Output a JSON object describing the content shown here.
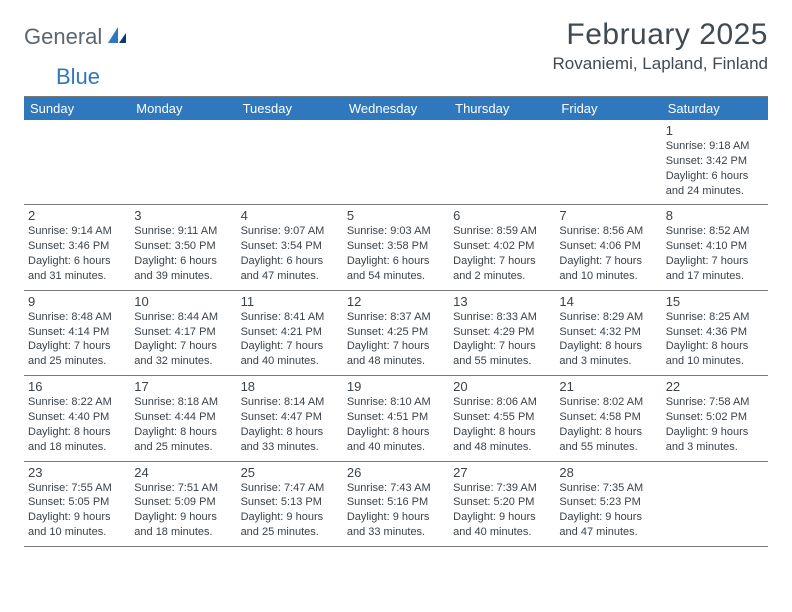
{
  "logo": {
    "general": "General",
    "blue": "Blue"
  },
  "title": "February 2025",
  "location": "Rovaniemi, Lapland, Finland",
  "colors": {
    "header_bg": "#2f78bd",
    "text": "#3a4249",
    "rule": "#7a7a7a"
  },
  "day_names": [
    "Sunday",
    "Monday",
    "Tuesday",
    "Wednesday",
    "Thursday",
    "Friday",
    "Saturday"
  ],
  "weeks": [
    [
      null,
      null,
      null,
      null,
      null,
      null,
      {
        "n": "1",
        "sr": "Sunrise: 9:18 AM",
        "ss": "Sunset: 3:42 PM",
        "d1": "Daylight: 6 hours",
        "d2": "and 24 minutes."
      }
    ],
    [
      {
        "n": "2",
        "sr": "Sunrise: 9:14 AM",
        "ss": "Sunset: 3:46 PM",
        "d1": "Daylight: 6 hours",
        "d2": "and 31 minutes."
      },
      {
        "n": "3",
        "sr": "Sunrise: 9:11 AM",
        "ss": "Sunset: 3:50 PM",
        "d1": "Daylight: 6 hours",
        "d2": "and 39 minutes."
      },
      {
        "n": "4",
        "sr": "Sunrise: 9:07 AM",
        "ss": "Sunset: 3:54 PM",
        "d1": "Daylight: 6 hours",
        "d2": "and 47 minutes."
      },
      {
        "n": "5",
        "sr": "Sunrise: 9:03 AM",
        "ss": "Sunset: 3:58 PM",
        "d1": "Daylight: 6 hours",
        "d2": "and 54 minutes."
      },
      {
        "n": "6",
        "sr": "Sunrise: 8:59 AM",
        "ss": "Sunset: 4:02 PM",
        "d1": "Daylight: 7 hours",
        "d2": "and 2 minutes."
      },
      {
        "n": "7",
        "sr": "Sunrise: 8:56 AM",
        "ss": "Sunset: 4:06 PM",
        "d1": "Daylight: 7 hours",
        "d2": "and 10 minutes."
      },
      {
        "n": "8",
        "sr": "Sunrise: 8:52 AM",
        "ss": "Sunset: 4:10 PM",
        "d1": "Daylight: 7 hours",
        "d2": "and 17 minutes."
      }
    ],
    [
      {
        "n": "9",
        "sr": "Sunrise: 8:48 AM",
        "ss": "Sunset: 4:14 PM",
        "d1": "Daylight: 7 hours",
        "d2": "and 25 minutes."
      },
      {
        "n": "10",
        "sr": "Sunrise: 8:44 AM",
        "ss": "Sunset: 4:17 PM",
        "d1": "Daylight: 7 hours",
        "d2": "and 32 minutes."
      },
      {
        "n": "11",
        "sr": "Sunrise: 8:41 AM",
        "ss": "Sunset: 4:21 PM",
        "d1": "Daylight: 7 hours",
        "d2": "and 40 minutes."
      },
      {
        "n": "12",
        "sr": "Sunrise: 8:37 AM",
        "ss": "Sunset: 4:25 PM",
        "d1": "Daylight: 7 hours",
        "d2": "and 48 minutes."
      },
      {
        "n": "13",
        "sr": "Sunrise: 8:33 AM",
        "ss": "Sunset: 4:29 PM",
        "d1": "Daylight: 7 hours",
        "d2": "and 55 minutes."
      },
      {
        "n": "14",
        "sr": "Sunrise: 8:29 AM",
        "ss": "Sunset: 4:32 PM",
        "d1": "Daylight: 8 hours",
        "d2": "and 3 minutes."
      },
      {
        "n": "15",
        "sr": "Sunrise: 8:25 AM",
        "ss": "Sunset: 4:36 PM",
        "d1": "Daylight: 8 hours",
        "d2": "and 10 minutes."
      }
    ],
    [
      {
        "n": "16",
        "sr": "Sunrise: 8:22 AM",
        "ss": "Sunset: 4:40 PM",
        "d1": "Daylight: 8 hours",
        "d2": "and 18 minutes."
      },
      {
        "n": "17",
        "sr": "Sunrise: 8:18 AM",
        "ss": "Sunset: 4:44 PM",
        "d1": "Daylight: 8 hours",
        "d2": "and 25 minutes."
      },
      {
        "n": "18",
        "sr": "Sunrise: 8:14 AM",
        "ss": "Sunset: 4:47 PM",
        "d1": "Daylight: 8 hours",
        "d2": "and 33 minutes."
      },
      {
        "n": "19",
        "sr": "Sunrise: 8:10 AM",
        "ss": "Sunset: 4:51 PM",
        "d1": "Daylight: 8 hours",
        "d2": "and 40 minutes."
      },
      {
        "n": "20",
        "sr": "Sunrise: 8:06 AM",
        "ss": "Sunset: 4:55 PM",
        "d1": "Daylight: 8 hours",
        "d2": "and 48 minutes."
      },
      {
        "n": "21",
        "sr": "Sunrise: 8:02 AM",
        "ss": "Sunset: 4:58 PM",
        "d1": "Daylight: 8 hours",
        "d2": "and 55 minutes."
      },
      {
        "n": "22",
        "sr": "Sunrise: 7:58 AM",
        "ss": "Sunset: 5:02 PM",
        "d1": "Daylight: 9 hours",
        "d2": "and 3 minutes."
      }
    ],
    [
      {
        "n": "23",
        "sr": "Sunrise: 7:55 AM",
        "ss": "Sunset: 5:05 PM",
        "d1": "Daylight: 9 hours",
        "d2": "and 10 minutes."
      },
      {
        "n": "24",
        "sr": "Sunrise: 7:51 AM",
        "ss": "Sunset: 5:09 PM",
        "d1": "Daylight: 9 hours",
        "d2": "and 18 minutes."
      },
      {
        "n": "25",
        "sr": "Sunrise: 7:47 AM",
        "ss": "Sunset: 5:13 PM",
        "d1": "Daylight: 9 hours",
        "d2": "and 25 minutes."
      },
      {
        "n": "26",
        "sr": "Sunrise: 7:43 AM",
        "ss": "Sunset: 5:16 PM",
        "d1": "Daylight: 9 hours",
        "d2": "and 33 minutes."
      },
      {
        "n": "27",
        "sr": "Sunrise: 7:39 AM",
        "ss": "Sunset: 5:20 PM",
        "d1": "Daylight: 9 hours",
        "d2": "and 40 minutes."
      },
      {
        "n": "28",
        "sr": "Sunrise: 7:35 AM",
        "ss": "Sunset: 5:23 PM",
        "d1": "Daylight: 9 hours",
        "d2": "and 47 minutes."
      },
      null
    ]
  ]
}
